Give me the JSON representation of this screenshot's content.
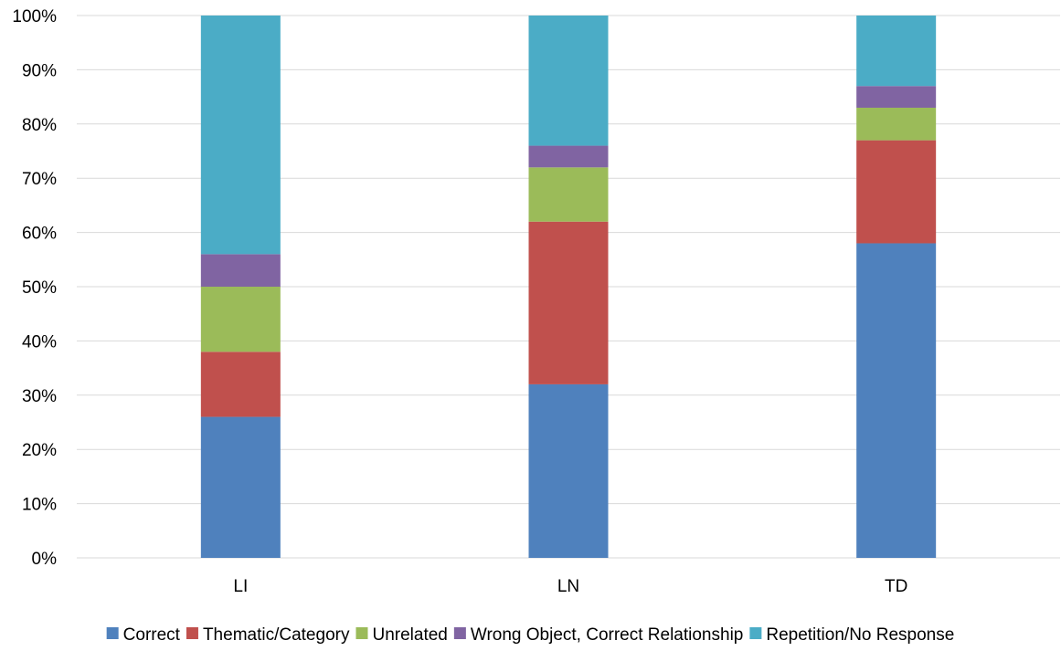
{
  "chart_data": {
    "type": "bar",
    "stacked": true,
    "percent_stacked": true,
    "categories": [
      "LI",
      "LN",
      "TD"
    ],
    "series": [
      {
        "name": "Correct",
        "color": "#4F81BD",
        "values": [
          26,
          32,
          58
        ]
      },
      {
        "name": "Thematic/Category",
        "color": "#C0504D",
        "values": [
          12,
          30,
          19
        ]
      },
      {
        "name": "Unrelated",
        "color": "#9BBB59",
        "values": [
          12,
          10,
          6
        ]
      },
      {
        "name": "Wrong Object, Correct Relationship",
        "color": "#8064A2",
        "values": [
          6,
          4,
          4
        ]
      },
      {
        "name": "Repetition/No Response",
        "color": "#4BACC6",
        "values": [
          44,
          24,
          13
        ]
      }
    ],
    "y_ticks": [
      "0%",
      "10%",
      "20%",
      "30%",
      "40%",
      "50%",
      "60%",
      "70%",
      "80%",
      "90%",
      "100%"
    ],
    "ylim": [
      0,
      100
    ],
    "title": "",
    "xlabel": "",
    "ylabel": "",
    "grid": true,
    "gridline_color": "#D9D9D9",
    "legend_position": "bottom"
  }
}
